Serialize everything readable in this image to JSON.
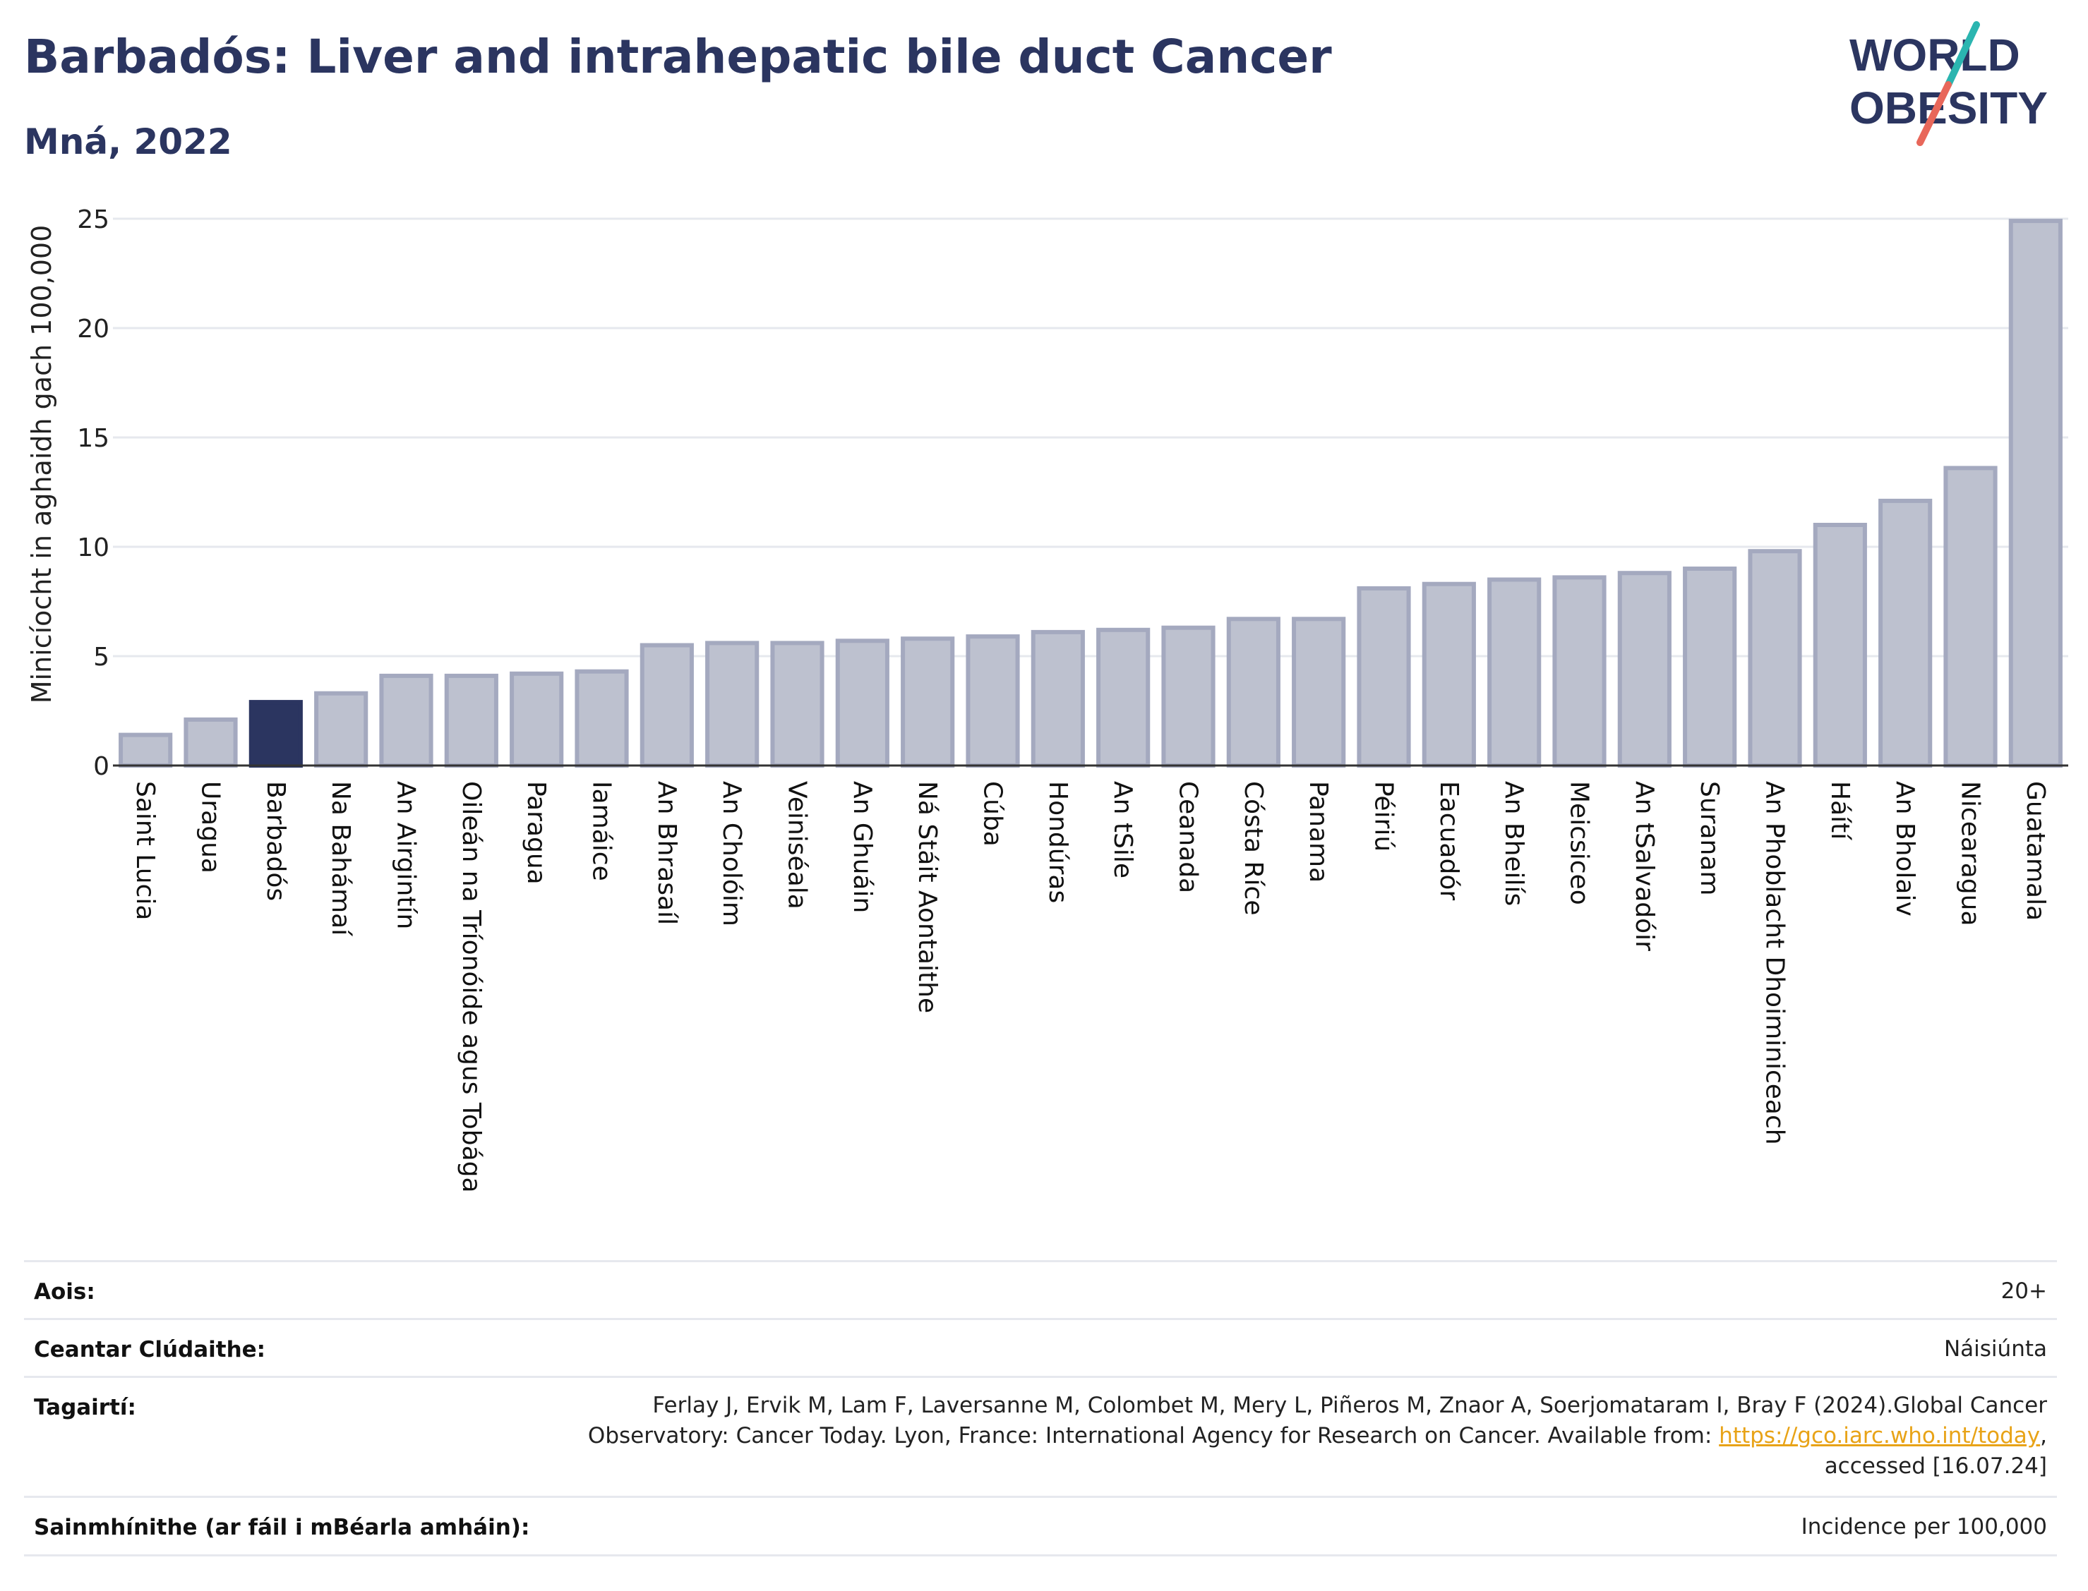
{
  "header": {
    "title": "Barbadós: Liver and intrahepatic bile duct Cancer",
    "subtitle": "Mná, 2022"
  },
  "logo": {
    "line1": "WORLD",
    "line2": "OBESITY",
    "colors": {
      "text": "#2b3560",
      "slash_top": "#2bb5b0",
      "slash_bottom": "#e8675a"
    }
  },
  "chart_data": {
    "type": "bar",
    "ylabel": "Minicíocht in aghaidh gach 100,000",
    "ylim": [
      0,
      25
    ],
    "yticks": [
      0,
      5,
      10,
      15,
      20,
      25
    ],
    "grid": true,
    "highlight": "Barbadós",
    "colors": {
      "bar": "#bdc1cf",
      "bar_border": "#a4a9bf",
      "highlight": "#2b3560",
      "axis": "#333333",
      "grid": "#e6e8ee"
    },
    "categories": [
      "Saint Lucia",
      "Uragua",
      "Barbadós",
      "Na Bahámaí",
      "An Airgintín",
      "Oileán na Tríonóide agus Tobága",
      "Paragua",
      "Iamáice",
      "An Bhrasaíl",
      "An Cholóim",
      "Veiniséala",
      "An Ghuáin",
      "Ná Stáit Aontaithe",
      "Cúba",
      "Hondúras",
      "An tSile",
      "Ceanada",
      "Cósta Ríce",
      "Panama",
      "Péiriú",
      "Eacuadór",
      "An Bheilís",
      "Meicsiceo",
      "An tSalvadóir",
      "Suranam",
      "An Phoblacht Dhoiminiceach",
      "Háítí",
      "An Bholaiv",
      "Nicearagua",
      "Guatamala"
    ],
    "values": [
      1.4,
      2.1,
      2.9,
      3.3,
      4.1,
      4.1,
      4.2,
      4.3,
      5.5,
      5.6,
      5.6,
      5.7,
      5.8,
      5.9,
      6.1,
      6.2,
      6.3,
      6.7,
      6.7,
      8.1,
      8.3,
      8.5,
      8.6,
      8.8,
      9.0,
      9.8,
      11.0,
      12.1,
      13.6,
      24.9
    ]
  },
  "footer": {
    "age_label": "Aois:",
    "age_value": "20+",
    "area_label": "Ceantar Clúdaithe:",
    "area_value": "Náisiúnta",
    "ref_label": "Tagairtí:",
    "ref_line1": "Ferlay J, Ervik M, Lam F, Laversanne M, Colombet M, Mery L, Piñeros M, Znaor A, Soerjomataram I, Bray F (2024).Global Cancer",
    "ref_line2": "Observatory: Cancer Today. Lyon, France: International Agency for Research on Cancer. Available from: ",
    "ref_link": "https://gco.iarc.who.int/today",
    "ref_line2_end": ",",
    "ref_line3": "accessed [16.07.24]",
    "def_label": "Sainmhínithe (ar fáil i mBéarla amháin):",
    "def_value": "Incidence per 100,000"
  }
}
